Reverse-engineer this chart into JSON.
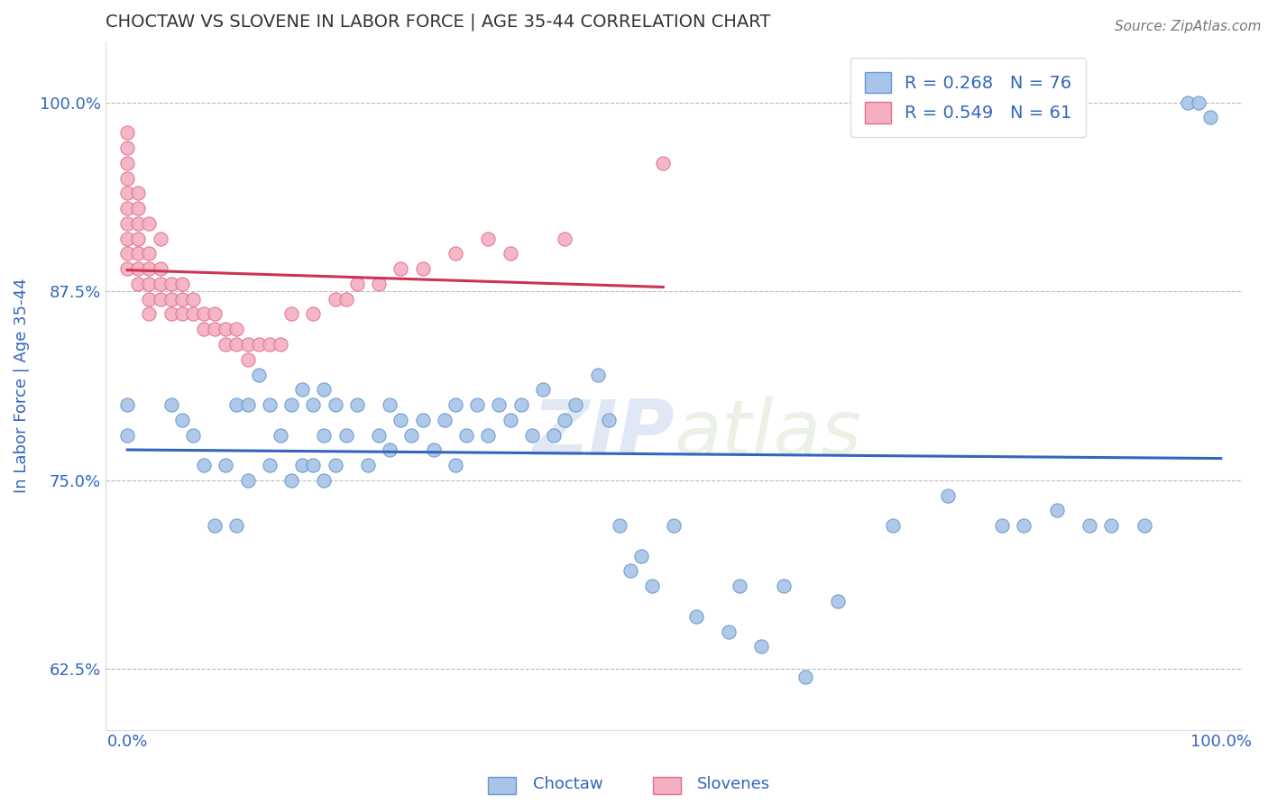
{
  "title": "CHOCTAW VS SLOVENE IN LABOR FORCE | AGE 35-44 CORRELATION CHART",
  "source_text": "Source: ZipAtlas.com",
  "ylabel": "In Labor Force | Age 35-44",
  "watermark_zip": "ZIP",
  "watermark_atlas": "atlas",
  "xlim": [
    -0.02,
    1.02
  ],
  "ylim": [
    0.585,
    1.04
  ],
  "yticks": [
    0.625,
    0.75,
    0.875,
    1.0
  ],
  "yticklabels": [
    "62.5%",
    "75.0%",
    "87.5%",
    "100.0%"
  ],
  "choctaw_color": "#a8c4e8",
  "slovene_color": "#f4afc0",
  "choctaw_edge_color": "#6699cc",
  "slovene_edge_color": "#e07090",
  "choctaw_line_color": "#3366bb",
  "slovene_line_color": "#cc3355",
  "choctaw_R": 0.268,
  "choctaw_N": 76,
  "slovene_R": 0.549,
  "slovene_N": 61,
  "legend_label_choctaw": "Choctaw",
  "legend_label_slovene": "Slovenes",
  "grid_color": "#bbbbbb",
  "background_color": "#ffffff",
  "title_color": "#333333",
  "axis_label_color": "#3366bb",
  "tick_label_color": "#3366bb",
  "legend_text_color": "#3366bb",
  "source_color": "#777777",
  "choctaw_x": [
    0.0,
    0.0,
    0.04,
    0.05,
    0.06,
    0.07,
    0.08,
    0.09,
    0.1,
    0.1,
    0.11,
    0.11,
    0.12,
    0.13,
    0.13,
    0.14,
    0.15,
    0.15,
    0.16,
    0.16,
    0.17,
    0.17,
    0.18,
    0.18,
    0.18,
    0.19,
    0.19,
    0.2,
    0.21,
    0.22,
    0.23,
    0.24,
    0.24,
    0.25,
    0.26,
    0.27,
    0.28,
    0.29,
    0.3,
    0.3,
    0.31,
    0.32,
    0.33,
    0.34,
    0.35,
    0.36,
    0.37,
    0.38,
    0.39,
    0.4,
    0.41,
    0.43,
    0.44,
    0.45,
    0.46,
    0.47,
    0.48,
    0.5,
    0.52,
    0.55,
    0.56,
    0.58,
    0.6,
    0.62,
    0.65,
    0.7,
    0.75,
    0.8,
    0.82,
    0.85,
    0.88,
    0.9,
    0.93,
    0.97,
    0.98,
    0.99
  ],
  "choctaw_y": [
    0.8,
    0.78,
    0.8,
    0.79,
    0.78,
    0.76,
    0.72,
    0.76,
    0.72,
    0.8,
    0.75,
    0.8,
    0.82,
    0.76,
    0.8,
    0.78,
    0.75,
    0.8,
    0.76,
    0.81,
    0.76,
    0.8,
    0.75,
    0.78,
    0.81,
    0.76,
    0.8,
    0.78,
    0.8,
    0.76,
    0.78,
    0.77,
    0.8,
    0.79,
    0.78,
    0.79,
    0.77,
    0.79,
    0.76,
    0.8,
    0.78,
    0.8,
    0.78,
    0.8,
    0.79,
    0.8,
    0.78,
    0.81,
    0.78,
    0.79,
    0.8,
    0.82,
    0.79,
    0.72,
    0.69,
    0.7,
    0.68,
    0.72,
    0.66,
    0.65,
    0.68,
    0.64,
    0.68,
    0.62,
    0.67,
    0.72,
    0.74,
    0.72,
    0.72,
    0.73,
    0.72,
    0.72,
    0.72,
    1.0,
    1.0,
    0.99
  ],
  "slovene_x": [
    0.0,
    0.0,
    0.0,
    0.0,
    0.0,
    0.0,
    0.0,
    0.0,
    0.0,
    0.0,
    0.01,
    0.01,
    0.01,
    0.01,
    0.01,
    0.01,
    0.01,
    0.02,
    0.02,
    0.02,
    0.02,
    0.02,
    0.02,
    0.03,
    0.03,
    0.03,
    0.03,
    0.04,
    0.04,
    0.04,
    0.05,
    0.05,
    0.05,
    0.06,
    0.06,
    0.07,
    0.07,
    0.08,
    0.08,
    0.09,
    0.09,
    0.1,
    0.1,
    0.11,
    0.11,
    0.12,
    0.13,
    0.14,
    0.15,
    0.17,
    0.19,
    0.2,
    0.21,
    0.23,
    0.25,
    0.27,
    0.3,
    0.33,
    0.35,
    0.4,
    0.49
  ],
  "slovene_y": [
    0.98,
    0.97,
    0.96,
    0.95,
    0.94,
    0.93,
    0.92,
    0.91,
    0.9,
    0.89,
    0.94,
    0.93,
    0.92,
    0.91,
    0.9,
    0.89,
    0.88,
    0.92,
    0.9,
    0.89,
    0.88,
    0.87,
    0.86,
    0.91,
    0.89,
    0.88,
    0.87,
    0.88,
    0.87,
    0.86,
    0.88,
    0.87,
    0.86,
    0.87,
    0.86,
    0.86,
    0.85,
    0.86,
    0.85,
    0.85,
    0.84,
    0.85,
    0.84,
    0.84,
    0.83,
    0.84,
    0.84,
    0.84,
    0.86,
    0.86,
    0.87,
    0.87,
    0.88,
    0.88,
    0.89,
    0.89,
    0.9,
    0.91,
    0.9,
    0.91,
    0.96
  ]
}
